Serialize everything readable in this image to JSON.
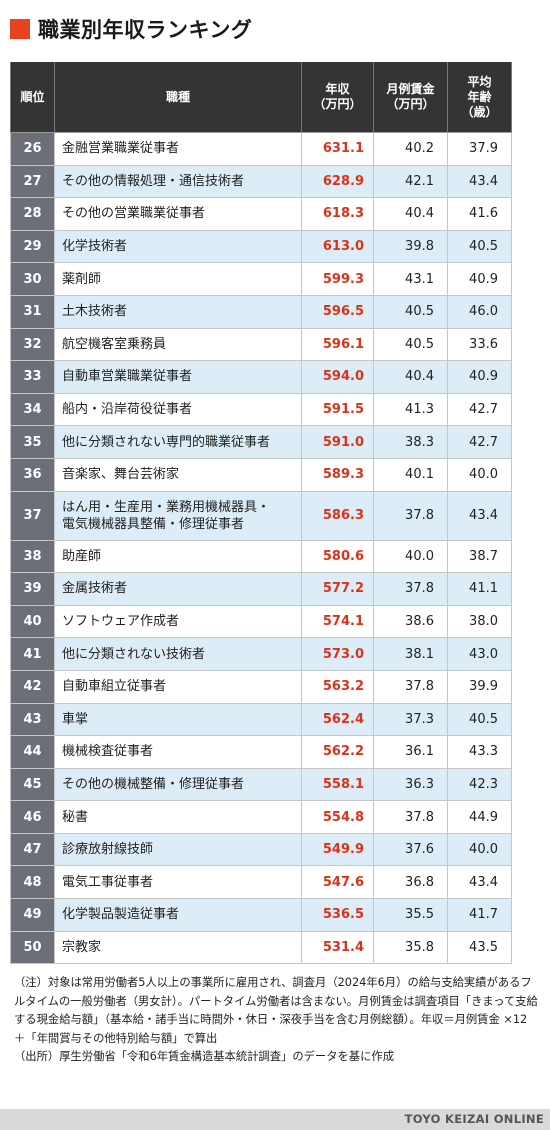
{
  "title": "職業別年収ランキング",
  "colors": {
    "accent": "#e8431e",
    "income": "#d8341b",
    "header_bg": "#343434",
    "rank_bg": "#6c6e78",
    "stripe": "#dcedf7"
  },
  "table": {
    "headers": {
      "rank": "順位",
      "job": "職種",
      "income": [
        "年収",
        "（万円）"
      ],
      "monthly": [
        "月例賃金",
        "（万円）"
      ],
      "age": [
        "平均",
        "年齢",
        "（歳）"
      ]
    },
    "rows": [
      {
        "rank": "26",
        "job": [
          "金融営業職業従事者"
        ],
        "income": "631.1",
        "monthly": "40.2",
        "age": "37.9"
      },
      {
        "rank": "27",
        "job": [
          "その他の情報処理・通信技術者"
        ],
        "income": "628.9",
        "monthly": "42.1",
        "age": "43.4"
      },
      {
        "rank": "28",
        "job": [
          "その他の営業職業従事者"
        ],
        "income": "618.3",
        "monthly": "40.4",
        "age": "41.6"
      },
      {
        "rank": "29",
        "job": [
          "化学技術者"
        ],
        "income": "613.0",
        "monthly": "39.8",
        "age": "40.5"
      },
      {
        "rank": "30",
        "job": [
          "薬剤師"
        ],
        "income": "599.3",
        "monthly": "43.1",
        "age": "40.9"
      },
      {
        "rank": "31",
        "job": [
          "土木技術者"
        ],
        "income": "596.5",
        "monthly": "40.5",
        "age": "46.0"
      },
      {
        "rank": "32",
        "job": [
          "航空機客室乗務員"
        ],
        "income": "596.1",
        "monthly": "40.5",
        "age": "33.6"
      },
      {
        "rank": "33",
        "job": [
          "自動車営業職業従事者"
        ],
        "income": "594.0",
        "monthly": "40.4",
        "age": "40.9"
      },
      {
        "rank": "34",
        "job": [
          "船内・沿岸荷役従事者"
        ],
        "income": "591.5",
        "monthly": "41.3",
        "age": "42.7"
      },
      {
        "rank": "35",
        "job": [
          "他に分類されない専門的職業従事者"
        ],
        "income": "591.0",
        "monthly": "38.3",
        "age": "42.7"
      },
      {
        "rank": "36",
        "job": [
          "音楽家、舞台芸術家"
        ],
        "income": "589.3",
        "monthly": "40.1",
        "age": "40.0"
      },
      {
        "rank": "37",
        "job": [
          "はん用・生産用・業務用機械器具・",
          "電気機械器具整備・修理従事者"
        ],
        "income": "586.3",
        "monthly": "37.8",
        "age": "43.4"
      },
      {
        "rank": "38",
        "job": [
          "助産師"
        ],
        "income": "580.6",
        "monthly": "40.0",
        "age": "38.7"
      },
      {
        "rank": "39",
        "job": [
          "金属技術者"
        ],
        "income": "577.2",
        "monthly": "37.8",
        "age": "41.1"
      },
      {
        "rank": "40",
        "job": [
          "ソフトウェア作成者"
        ],
        "income": "574.1",
        "monthly": "38.6",
        "age": "38.0"
      },
      {
        "rank": "41",
        "job": [
          "他に分類されない技術者"
        ],
        "income": "573.0",
        "monthly": "38.1",
        "age": "43.0"
      },
      {
        "rank": "42",
        "job": [
          "自動車組立従事者"
        ],
        "income": "563.2",
        "monthly": "37.8",
        "age": "39.9"
      },
      {
        "rank": "43",
        "job": [
          "車掌"
        ],
        "income": "562.4",
        "monthly": "37.3",
        "age": "40.5"
      },
      {
        "rank": "44",
        "job": [
          "機械検査従事者"
        ],
        "income": "562.2",
        "monthly": "36.1",
        "age": "43.3"
      },
      {
        "rank": "45",
        "job": [
          "その他の機械整備・修理従事者"
        ],
        "income": "558.1",
        "monthly": "36.3",
        "age": "42.3"
      },
      {
        "rank": "46",
        "job": [
          "秘書"
        ],
        "income": "554.8",
        "monthly": "37.8",
        "age": "44.9"
      },
      {
        "rank": "47",
        "job": [
          "診療放射線技師"
        ],
        "income": "549.9",
        "monthly": "37.6",
        "age": "40.0"
      },
      {
        "rank": "48",
        "job": [
          "電気工事従事者"
        ],
        "income": "547.6",
        "monthly": "36.8",
        "age": "43.4"
      },
      {
        "rank": "49",
        "job": [
          "化学製品製造従事者"
        ],
        "income": "536.5",
        "monthly": "35.5",
        "age": "41.7"
      },
      {
        "rank": "50",
        "job": [
          "宗教家"
        ],
        "income": "531.4",
        "monthly": "35.8",
        "age": "43.5"
      }
    ]
  },
  "notes": {
    "note": "（注）対象は常用労働者5人以上の事業所に雇用され、調査月（2024年6月）の給与支給実績があるフルタイムの一般労働者（男女計）。パートタイム労働者は含まない。月例賃金は調査項目「きまって支給する現金給与額」（基本給・諸手当に時間外・休日・深夜手当を含む月例総額）。年収＝月例賃金 ×12 ＋「年間賞与その他特別給与額」で算出",
    "source": "（出所）厚生労働省「令和6年賃金構造基本統計調査」のデータを基に作成"
  },
  "footer": {
    "brand": "TOYO KEIZAI ONLINE"
  }
}
